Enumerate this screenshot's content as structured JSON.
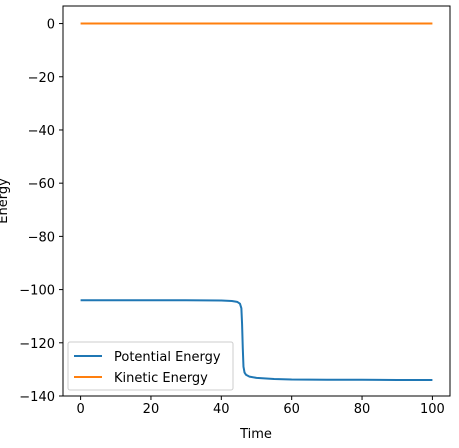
{
  "chart_data": {
    "type": "line",
    "xlabel": "Time",
    "ylabel": "Energy",
    "xlim": [
      -5,
      105
    ],
    "ylim": [
      -140,
      6.6
    ],
    "x_ticks": [
      0,
      20,
      40,
      60,
      80,
      100
    ],
    "x_tick_labels": [
      "0",
      "20",
      "40",
      "60",
      "80",
      "100"
    ],
    "y_ticks": [
      0,
      -20,
      -40,
      -60,
      -80,
      -100,
      -120,
      -140
    ],
    "y_tick_labels": [
      "0",
      "−20",
      "−40",
      "−60",
      "−80",
      "−100",
      "−120",
      "−140"
    ],
    "grid": false,
    "legend_position": "lower-left",
    "series": [
      {
        "name": "Potential Energy",
        "color": "#1f77b4",
        "x": [
          0,
          10,
          20,
          30,
          40,
          43,
          44.5,
          45.3,
          45.7,
          45.9,
          46.1,
          46.3,
          46.6,
          47,
          48,
          50,
          55,
          60,
          70,
          80,
          90,
          100
        ],
        "y": [
          -104.0,
          -104.0,
          -104.0,
          -104.0,
          -104.1,
          -104.3,
          -104.6,
          -105.3,
          -107,
          -113,
          -122,
          -129,
          -131.2,
          -132.0,
          -132.7,
          -133.2,
          -133.6,
          -133.8,
          -133.9,
          -133.9,
          -134.0,
          -134.0
        ]
      },
      {
        "name": "Kinetic Energy",
        "color": "#ff7f0e",
        "x": [
          0,
          100
        ],
        "y": [
          0,
          0
        ]
      }
    ]
  }
}
